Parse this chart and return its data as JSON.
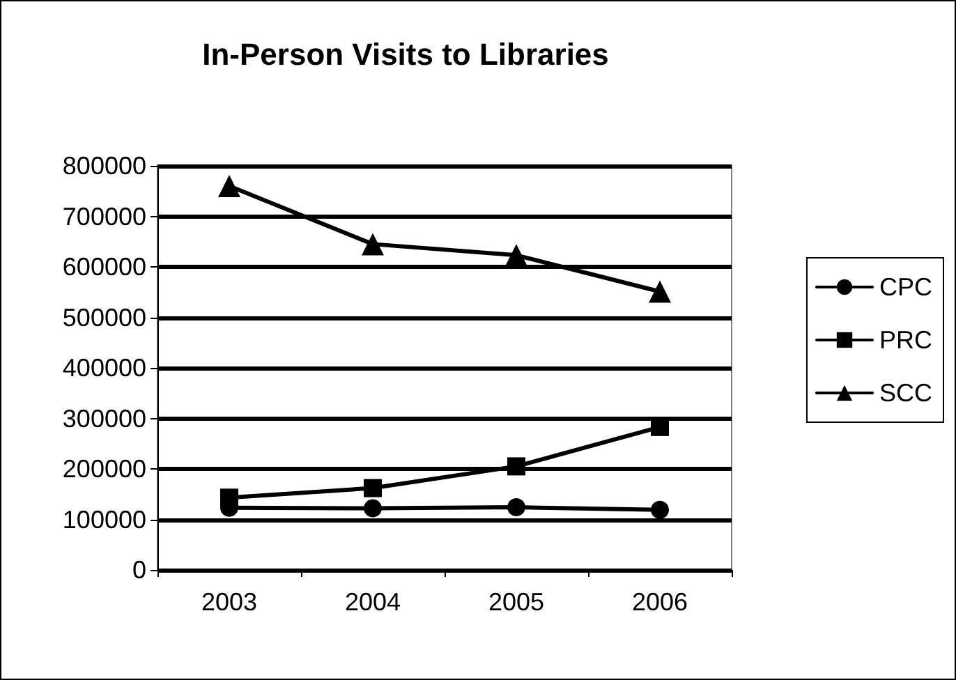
{
  "chart_data": {
    "type": "line",
    "title": "In-Person Visits to Libraries",
    "categories": [
      "2003",
      "2004",
      "2005",
      "2006"
    ],
    "series": [
      {
        "name": "CPC",
        "color": "#000000",
        "marker": "circle",
        "values": [
          123000,
          122000,
          124000,
          119000
        ]
      },
      {
        "name": "PRC",
        "color": "#000000",
        "marker": "square",
        "values": [
          143000,
          162000,
          205000,
          283000
        ]
      },
      {
        "name": "SCC",
        "color": "#000000",
        "marker": "triangle",
        "values": [
          760000,
          645000,
          623000,
          551000
        ]
      }
    ],
    "ylim": [
      0,
      800000
    ],
    "yticks": [
      0,
      100000,
      200000,
      300000,
      400000,
      500000,
      600000,
      700000,
      800000
    ],
    "grid": "y",
    "legend": "right",
    "line_style": "solid"
  }
}
